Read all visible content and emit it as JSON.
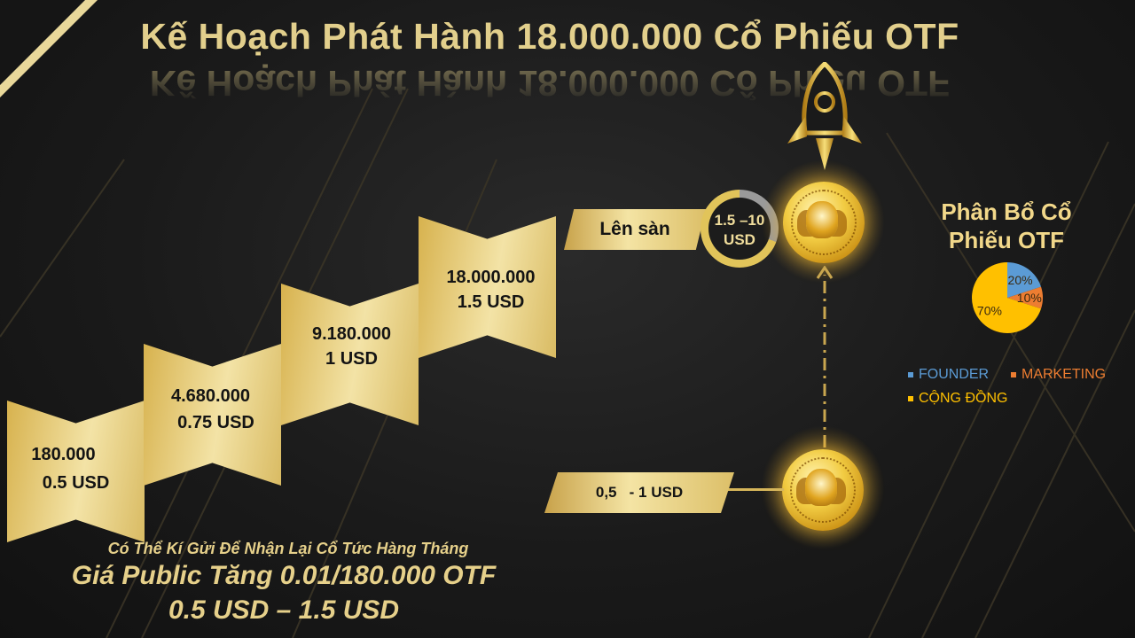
{
  "title": "Kế Hoạch Phát Hành 18.000.000 Cổ Phiếu OTF",
  "steps": [
    {
      "shares": "180.000",
      "price": "0.5 USD"
    },
    {
      "shares": "4.680.000",
      "price": "0.75 USD"
    },
    {
      "shares": "9.180.000",
      "price": "1 USD"
    },
    {
      "shares": "18.000.000",
      "price": "1.5 USD"
    }
  ],
  "listing": {
    "label": "Lên sàn",
    "range": "1.5 –10",
    "unit": "USD"
  },
  "initial_price": "0,5   - 1 USD",
  "pie": {
    "title_line1": "Phân Bổ Cổ",
    "title_line2": "Phiếu OTF",
    "slices": [
      {
        "name": "FOUNDER",
        "value": 20,
        "label": "20%",
        "color": "#5b9bd5"
      },
      {
        "name": "MARKETING",
        "value": 10,
        "label": "10%",
        "color": "#ed7d31"
      },
      {
        "name": "CỘNG ĐỒNG",
        "value": 70,
        "label": "70%",
        "color": "#ffc000"
      }
    ]
  },
  "footer": {
    "line1": "Có Thể Kí Gửi Để Nhận Lại Cổ Tức Hàng Tháng",
    "line2": "Giá Public Tăng 0.01/180.000 OTF",
    "line3": "0.5 USD – 1.5 USD"
  },
  "colors": {
    "gold": "#e2cf8c",
    "background": "#151515"
  }
}
